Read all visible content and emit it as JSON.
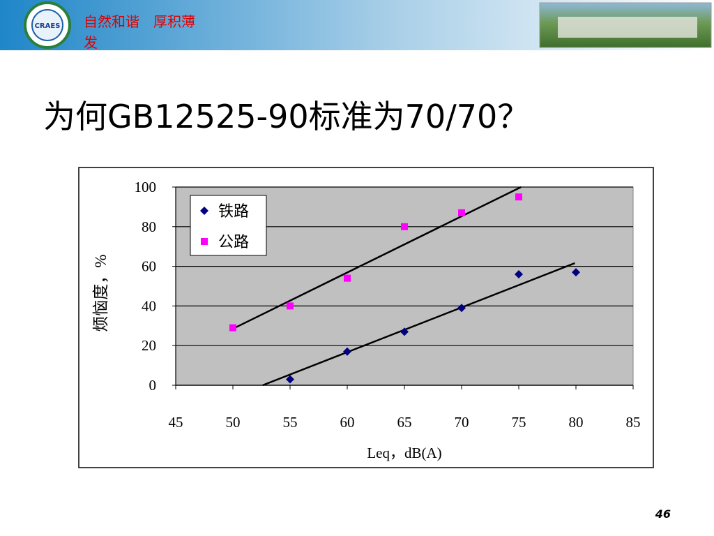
{
  "slide": {
    "motto": "自然和谐　厚积薄发",
    "logo": "CRAES",
    "heading": "为何GB12525-90标准为70/70？",
    "page_number": "46"
  },
  "chart_data": {
    "type": "scatter",
    "x_label": "Leq，dB(A)",
    "y_label": "烦恼度，%",
    "xlim": [
      45,
      85
    ],
    "xticks": [
      45,
      50,
      55,
      60,
      65,
      70,
      75,
      80,
      85
    ],
    "ylim": [
      0,
      100
    ],
    "yticks": [
      0,
      20,
      40,
      60,
      80,
      100
    ],
    "grid": true,
    "plot_color": "#c0c0c0",
    "legend": "upper left",
    "series": [
      {
        "name": "铁路",
        "color": "#000080",
        "marker": "diamond",
        "x": [
          55,
          60,
          65,
          70,
          75,
          80
        ],
        "values": [
          3,
          17,
          27,
          39,
          56,
          57
        ]
      },
      {
        "name": "公路",
        "color": "#ff00ff",
        "marker": "square",
        "x": [
          50,
          55,
          60,
          65,
          70,
          75
        ],
        "values": [
          29,
          40,
          54,
          80,
          87,
          95
        ]
      }
    ],
    "trendlines": [
      {
        "x": [
          52.6,
          79.9
        ],
        "values": [
          0,
          61.6
        ],
        "color": "#000000"
      },
      {
        "x": [
          50,
          75.2
        ],
        "values": [
          28.5,
          100
        ],
        "color": "#000000"
      }
    ]
  }
}
